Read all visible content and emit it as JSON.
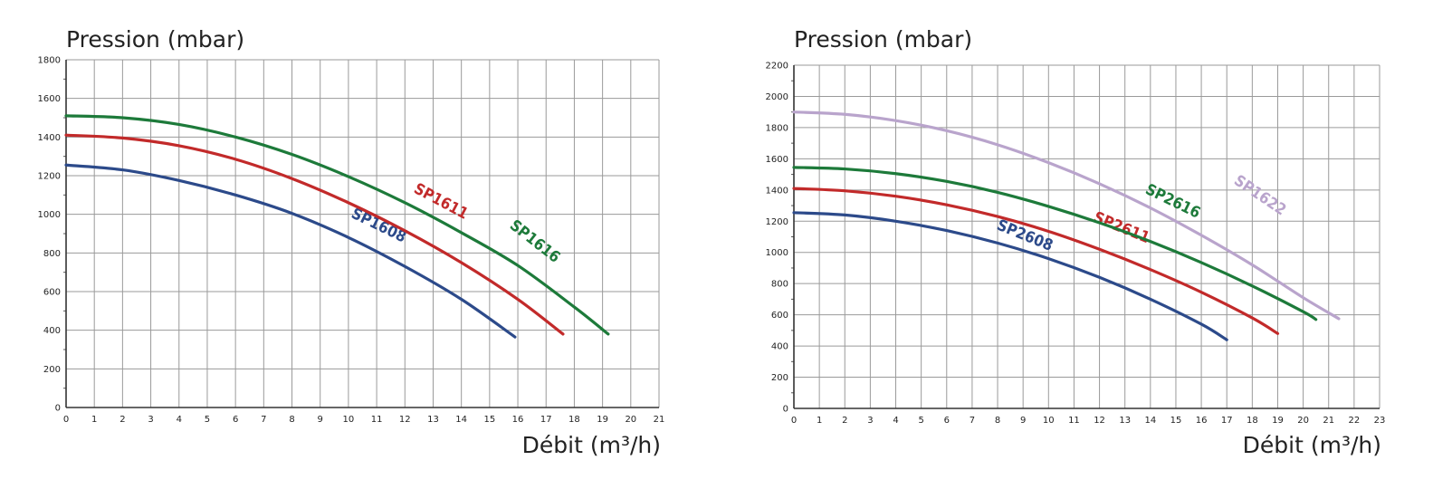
{
  "chart_data": [
    {
      "type": "line",
      "ylabel": "Pression (mbar)",
      "xlabel": "Débit (m³/h)",
      "xlim": [
        0,
        21
      ],
      "ylim": [
        0,
        1800
      ],
      "xticks": [
        "0",
        "1",
        "2",
        "3",
        "4",
        "5",
        "6",
        "7",
        "8",
        "9",
        "10",
        "11",
        "12",
        "13",
        "14",
        "15",
        "16",
        "17",
        "18",
        "19",
        "20",
        "21"
      ],
      "yticks": [
        "0",
        "200",
        "400",
        "600",
        "800",
        "1000",
        "1200",
        "1400",
        "1600",
        "1800"
      ],
      "grid": true,
      "series": [
        {
          "name": "SP1608",
          "color": "#2c4a8a",
          "x": [
            0,
            2,
            4,
            6,
            8,
            10,
            12,
            14,
            15.9
          ],
          "y": [
            1255,
            1230,
            1175,
            1100,
            1005,
            880,
            730,
            560,
            365
          ]
        },
        {
          "name": "SP1611",
          "color": "#c22a2a",
          "x": [
            0,
            2,
            4,
            6,
            8,
            10,
            12,
            14,
            16,
            17.6
          ],
          "y": [
            1410,
            1395,
            1355,
            1285,
            1185,
            1060,
            915,
            750,
            560,
            380
          ]
        },
        {
          "name": "SP1616",
          "color": "#1d7a3a",
          "x": [
            0,
            2,
            4,
            6,
            8,
            10,
            12,
            14,
            16,
            18,
            19.2
          ],
          "y": [
            1510,
            1500,
            1465,
            1400,
            1310,
            1195,
            1060,
            905,
            735,
            520,
            380
          ]
        }
      ]
    },
    {
      "type": "line",
      "ylabel": "Pression (mbar)",
      "xlabel": "Débit (m³/h)",
      "xlim": [
        0,
        23
      ],
      "ylim": [
        0,
        2200
      ],
      "xticks": [
        "0",
        "1",
        "2",
        "3",
        "4",
        "5",
        "6",
        "7",
        "8",
        "9",
        "10",
        "11",
        "12",
        "13",
        "14",
        "15",
        "16",
        "17",
        "18",
        "19",
        "20",
        "21",
        "22",
        "23"
      ],
      "yticks": [
        "0",
        "200",
        "400",
        "600",
        "800",
        "1000",
        "1200",
        "1400",
        "1600",
        "1800",
        "2000",
        "2200"
      ],
      "grid": true,
      "series": [
        {
          "name": "SP2608",
          "color": "#2c4a8a",
          "x": [
            0,
            2,
            4,
            6,
            8,
            10,
            12,
            14,
            16,
            17
          ],
          "y": [
            1255,
            1240,
            1200,
            1140,
            1060,
            960,
            840,
            700,
            540,
            440
          ]
        },
        {
          "name": "SP2611",
          "color": "#c22a2a",
          "x": [
            0,
            2,
            4,
            6,
            8,
            10,
            12,
            14,
            16,
            18,
            19
          ],
          "y": [
            1410,
            1395,
            1360,
            1305,
            1230,
            1135,
            1020,
            890,
            745,
            580,
            480
          ]
        },
        {
          "name": "SP2616",
          "color": "#1d7a3a",
          "x": [
            0,
            2,
            4,
            6,
            8,
            10,
            12,
            14,
            16,
            18,
            20,
            20.5
          ],
          "y": [
            1545,
            1535,
            1505,
            1455,
            1385,
            1295,
            1190,
            1070,
            935,
            785,
            620,
            570
          ]
        },
        {
          "name": "SP1622",
          "color": "#b9a4cc",
          "x": [
            0,
            2,
            4,
            6,
            8,
            10,
            12,
            14,
            16,
            18,
            20,
            21.4
          ],
          "y": [
            1900,
            1885,
            1845,
            1780,
            1690,
            1575,
            1440,
            1285,
            1110,
            920,
            710,
            575
          ]
        }
      ]
    }
  ]
}
